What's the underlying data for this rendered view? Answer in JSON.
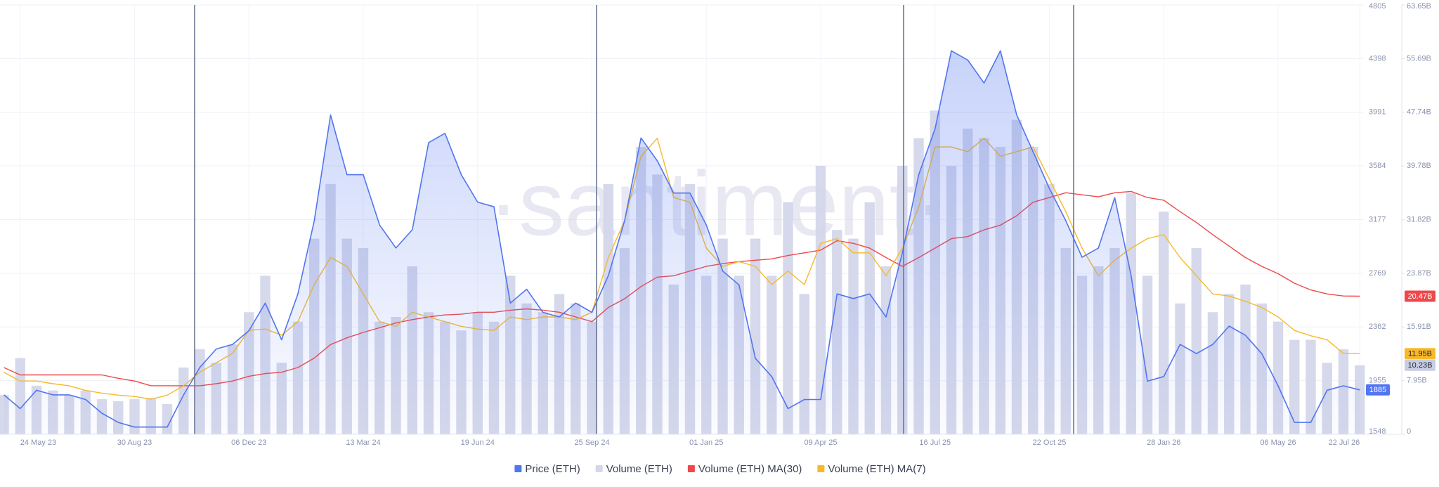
{
  "chart_data": {
    "type": "line",
    "watermark": "·santiment·",
    "categories": [
      null,
      "24 May 23",
      null,
      null,
      null,
      null,
      null,
      null,
      "30 Aug 23",
      null,
      null,
      null,
      null,
      null,
      null,
      "06 Dec 23",
      null,
      null,
      null,
      null,
      null,
      null,
      "13 Mar 24",
      null,
      null,
      null,
      null,
      null,
      null,
      "19 Jun 24",
      null,
      null,
      null,
      null,
      null,
      null,
      "25 Sep 24",
      null,
      null,
      null,
      null,
      null,
      null,
      "01 Jan 25",
      null,
      null,
      null,
      null,
      null,
      null,
      "09 Apr 25",
      null,
      null,
      null,
      null,
      null,
      null,
      "16 Jul 25",
      null,
      null,
      null,
      null,
      null,
      null,
      "22 Oct 25",
      null,
      null,
      null,
      null,
      null,
      null,
      "28 Jan 26",
      null,
      null,
      null,
      null,
      null,
      null,
      "06 May 26",
      null,
      null,
      null,
      null,
      "22 Jul 26"
    ],
    "ylim": [
      1548,
      4805
    ],
    "yticks": [
      1548,
      1955,
      2362,
      2769,
      3177,
      3584,
      3991,
      4398,
      4805
    ],
    "y2lim": [
      0,
      63.65
    ],
    "y2ticks": [
      0,
      {
        "value": 7.95,
        "label": "7.95B"
      },
      {
        "value": 15.91,
        "label": "15.91B"
      },
      {
        "value": 23.87,
        "label": "23.87B"
      },
      {
        "value": 31.82,
        "label": "31.82B"
      },
      {
        "value": 39.78,
        "label": "39.78B"
      },
      {
        "value": 47.74,
        "label": "47.74B"
      },
      {
        "value": 55.69,
        "label": "55.69B"
      },
      {
        "value": 63.65,
        "label": "63.65B"
      }
    ],
    "grid": true,
    "legend": "bottom",
    "series": [
      {
        "name": "Price (ETH)",
        "type": "line",
        "axis": "y",
        "color": "#5275f0",
        "values": [
          1847,
          1743,
          1882,
          1847,
          1847,
          1812,
          1708,
          1638,
          1603,
          1603,
          1603,
          1847,
          2056,
          2195,
          2230,
          2334,
          2543,
          2265,
          2613,
          3169,
          3970,
          3517,
          3517,
          3135,
          2961,
          3100,
          3761,
          3831,
          3517,
          3309,
          3274,
          2543,
          2648,
          2473,
          2438,
          2543,
          2473,
          2752,
          3169,
          3796,
          3622,
          3378,
          3378,
          3135,
          2787,
          2682,
          2125,
          1986,
          1743,
          1812,
          1812,
          2613,
          2578,
          2613,
          2438,
          2926,
          3517,
          3866,
          4457,
          4387,
          4213,
          4457,
          3970,
          3691,
          3413,
          3169,
          2891,
          2961,
          3343,
          2752,
          1951,
          1986,
          2230,
          2160,
          2230,
          2369,
          2299,
          2160,
          1916,
          1638,
          1638,
          1882,
          1916,
          1885
        ]
      },
      {
        "name": "Volume (ETH)",
        "type": "bar",
        "axis": "y2",
        "color": "#d4d7ea",
        "last_label": "10.23B",
        "values": [
          5.8,
          11.3,
          7.2,
          6.5,
          5.8,
          6.5,
          5.2,
          4.9,
          5.2,
          5.4,
          4.5,
          9.9,
          12.6,
          10.6,
          13.3,
          18.1,
          23.5,
          10.6,
          16.7,
          29.0,
          37.1,
          29.0,
          27.6,
          16.7,
          17.4,
          24.9,
          18.1,
          16.7,
          15.4,
          18.1,
          16.7,
          23.5,
          19.4,
          18.1,
          20.8,
          19.4,
          16.7,
          37.1,
          27.6,
          42.6,
          38.5,
          22.2,
          37.1,
          23.5,
          29.0,
          23.5,
          29.0,
          23.5,
          34.4,
          20.8,
          39.8,
          30.3,
          29.0,
          34.4,
          24.9,
          39.8,
          43.9,
          48.0,
          39.8,
          45.3,
          43.9,
          42.6,
          46.6,
          42.6,
          37.1,
          27.6,
          23.5,
          24.9,
          27.6,
          35.8,
          23.5,
          33.0,
          19.4,
          27.6,
          18.1,
          20.8,
          22.2,
          19.4,
          16.7,
          14.0,
          14.0,
          10.6,
          12.6,
          10.23
        ]
      },
      {
        "name": "Volume (ETH) MA(30)",
        "type": "line",
        "axis": "y2",
        "color": "#f0484a",
        "last_label": "20.47B",
        "values": [
          9.9,
          8.8,
          8.8,
          8.8,
          8.8,
          8.8,
          8.8,
          8.3,
          7.9,
          7.2,
          7.2,
          7.2,
          7.2,
          7.5,
          7.9,
          8.6,
          9.0,
          9.2,
          9.9,
          11.3,
          13.3,
          14.3,
          15.1,
          15.8,
          16.5,
          17.0,
          17.4,
          17.7,
          17.8,
          18.1,
          18.1,
          18.4,
          18.6,
          18.4,
          18.1,
          17.4,
          16.7,
          18.8,
          20.1,
          21.9,
          23.3,
          23.5,
          24.2,
          24.9,
          25.3,
          25.6,
          25.8,
          26.0,
          26.5,
          26.9,
          27.3,
          28.7,
          28.3,
          27.6,
          26.2,
          24.9,
          26.2,
          27.6,
          29.0,
          29.3,
          30.3,
          31.0,
          32.4,
          34.4,
          35.1,
          35.8,
          35.5,
          35.2,
          35.8,
          36.0,
          35.1,
          34.7,
          33.0,
          31.4,
          29.6,
          27.9,
          26.2,
          24.9,
          23.8,
          22.4,
          21.4,
          20.8,
          20.5,
          20.47
        ]
      },
      {
        "name": "Volume (ETH) MA(7)",
        "type": "line",
        "axis": "y2",
        "color": "#f7b92b",
        "last_label": "11.95B",
        "values": [
          9.2,
          7.9,
          7.9,
          7.5,
          7.2,
          6.5,
          6.1,
          5.8,
          5.6,
          5.2,
          5.8,
          7.2,
          9.2,
          10.6,
          12.0,
          15.4,
          15.6,
          14.7,
          16.7,
          22.2,
          26.2,
          24.9,
          20.8,
          16.7,
          16.0,
          18.1,
          17.4,
          16.7,
          16.0,
          15.6,
          15.4,
          17.4,
          17.0,
          17.4,
          17.4,
          17.0,
          18.1,
          26.2,
          31.7,
          41.2,
          43.9,
          35.1,
          34.4,
          27.6,
          24.9,
          25.6,
          24.9,
          22.2,
          24.2,
          22.2,
          28.3,
          29.0,
          26.9,
          26.9,
          23.5,
          27.6,
          33.7,
          42.6,
          42.6,
          41.9,
          43.9,
          41.2,
          41.9,
          42.6,
          37.8,
          33.0,
          27.6,
          23.5,
          25.8,
          27.6,
          29.0,
          29.6,
          26.2,
          23.5,
          20.8,
          20.5,
          19.7,
          18.8,
          17.4,
          15.4,
          14.6,
          14.0,
          12.0,
          11.95
        ]
      }
    ]
  }
}
